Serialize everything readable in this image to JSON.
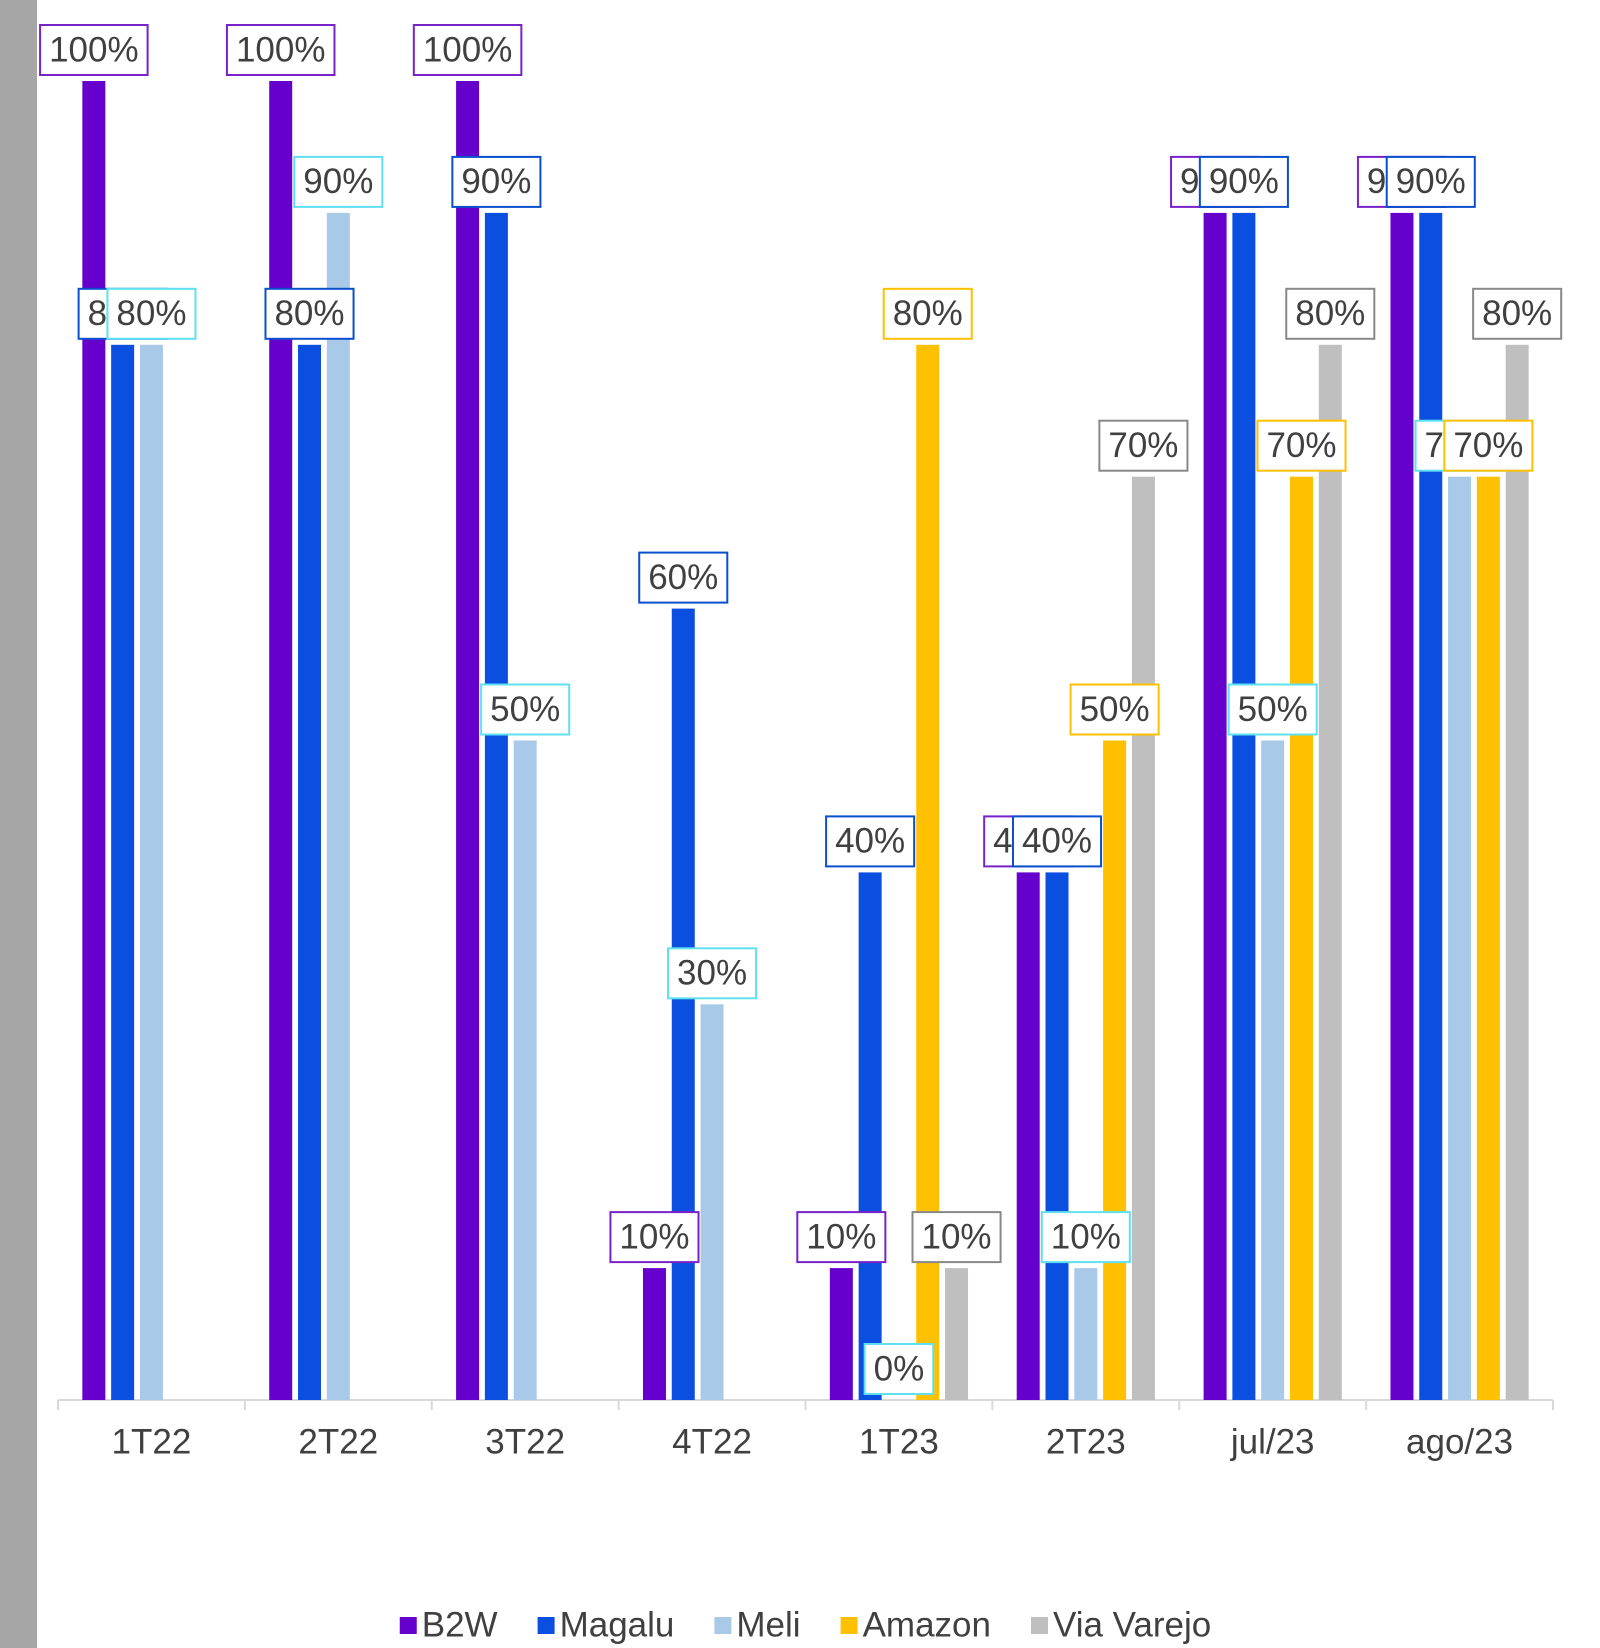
{
  "chart_data": {
    "type": "bar",
    "categories": [
      "1T22",
      "2T22",
      "3T22",
      "4T22",
      "1T23",
      "2T23",
      "jul/23",
      "ago/23"
    ],
    "series": [
      {
        "name": "B2W",
        "color": "#6600cc",
        "label_border": "#7a22c9",
        "values": [
          100,
          100,
          100,
          10,
          10,
          40,
          90,
          90
        ],
        "value_labels": [
          "100%",
          "100%",
          "100%",
          "10%",
          "10%",
          "40%",
          "90%",
          "90%"
        ]
      },
      {
        "name": "Magalu",
        "color": "#0a4fe0",
        "label_border": "#0a4fcc",
        "values": [
          80,
          80,
          90,
          60,
          40,
          40,
          90,
          90
        ],
        "value_labels": [
          "80%",
          "80%",
          "90%",
          "60%",
          "40%",
          "40%",
          "90%",
          "90%"
        ]
      },
      {
        "name": "Meli",
        "color": "#a9c9e9",
        "label_border": "#5fe0f0",
        "values": [
          80,
          90,
          50,
          30,
          0,
          10,
          50,
          70
        ],
        "value_labels": [
          "80%",
          "90%",
          "50%",
          "30%",
          "0%",
          "10%",
          "50%",
          "70%"
        ]
      },
      {
        "name": "Amazon",
        "color": "#ffc000",
        "label_border": "#ffc000",
        "values": [
          null,
          null,
          null,
          null,
          80,
          50,
          70,
          70
        ],
        "value_labels": [
          null,
          null,
          null,
          null,
          "80%",
          "50%",
          "70%",
          "70%"
        ]
      },
      {
        "name": "Via Varejo",
        "color": "#bfbfbf",
        "label_border": "#888888",
        "values": [
          null,
          null,
          null,
          null,
          10,
          70,
          80,
          80
        ],
        "value_labels": [
          null,
          null,
          null,
          null,
          "10%",
          "70%",
          "80%",
          "80%"
        ]
      }
    ],
    "ylim": [
      0,
      100
    ]
  }
}
